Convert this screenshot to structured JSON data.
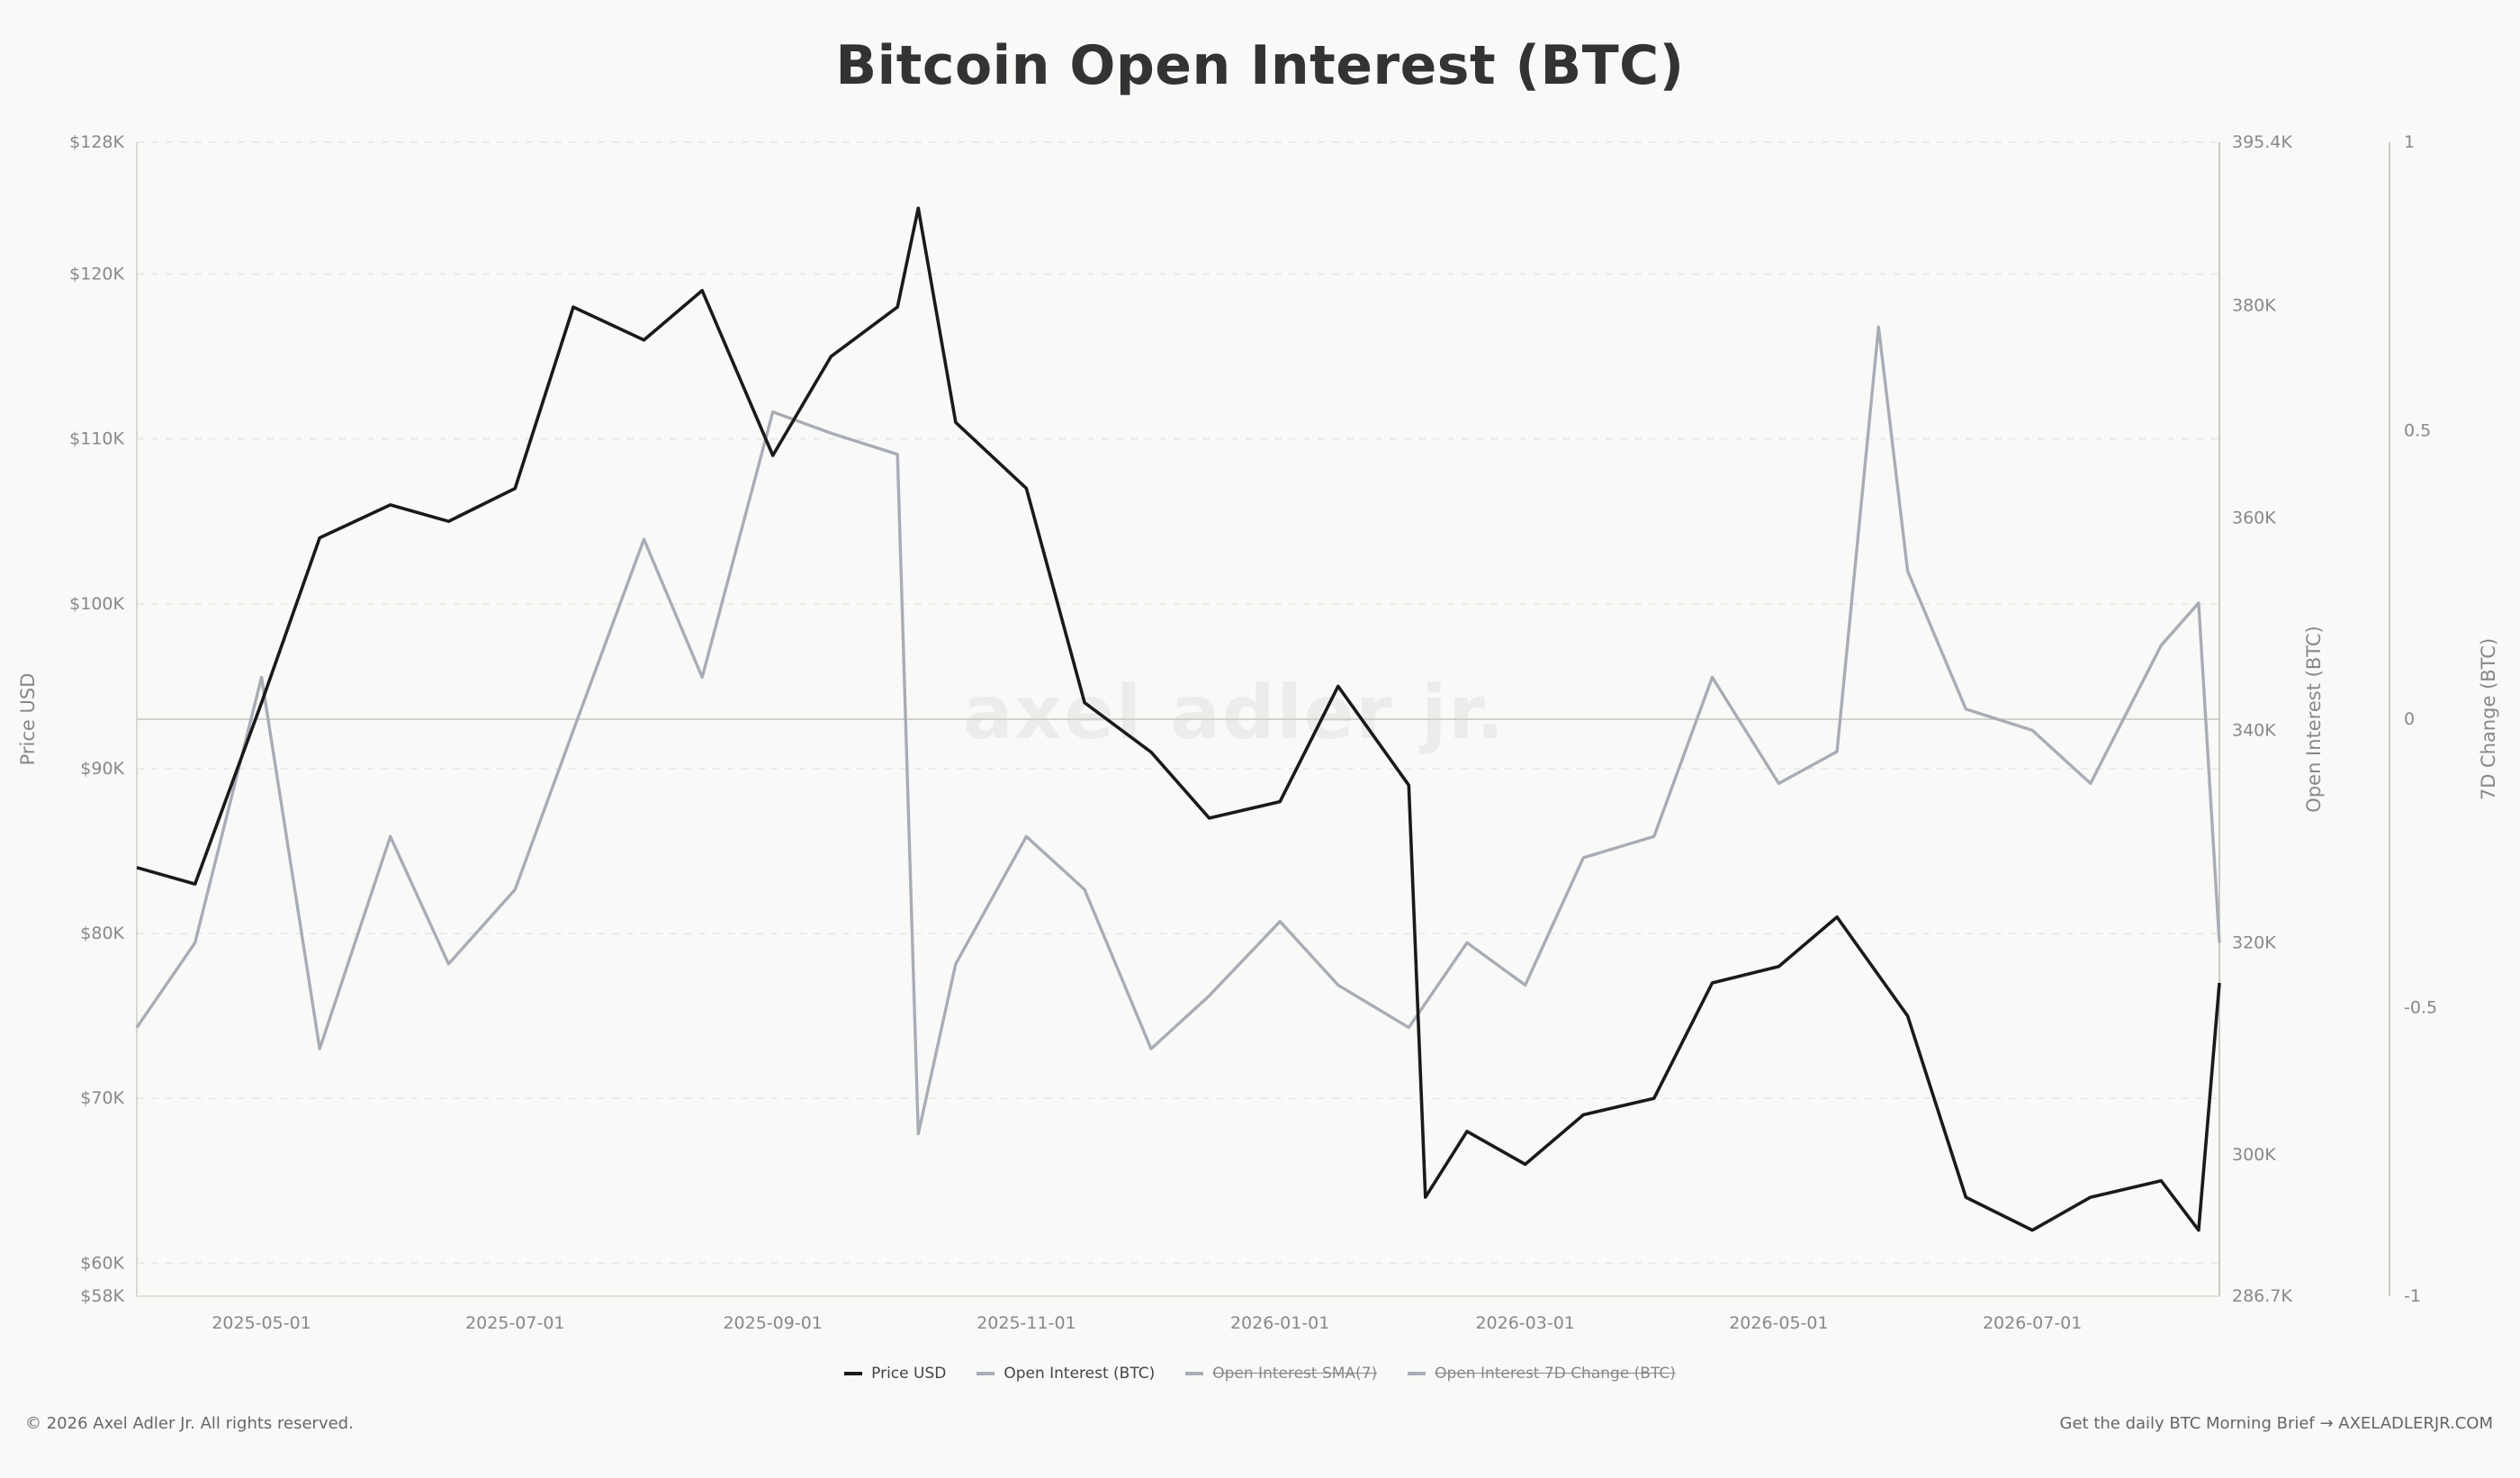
{
  "title": "Bitcoin Open Interest (BTC)",
  "watermark": "axel adler jr.",
  "footer": {
    "copyright": "© 2026 Axel Adler Jr. All rights reserved.",
    "cta": "Get the daily BTC Morning Brief → AXELADLERJR.COM"
  },
  "legend": [
    {
      "name": "Price USD",
      "color": "#1a1a1a",
      "hidden": false
    },
    {
      "name": "Open Interest (BTC)",
      "color": "#a8adb5",
      "hidden": false
    },
    {
      "name": "Open Interest SMA(7)",
      "color": "#a8adb5",
      "hidden": true
    },
    {
      "name": "Open Interest 7D Change (BTC)",
      "color": "#a8adb5",
      "hidden": true
    }
  ],
  "chart_data": {
    "type": "line",
    "title": "Bitcoin Open Interest (BTC)",
    "x_range": [
      "2025-04-01",
      "2026-08-15"
    ],
    "x_ticks": [
      "2025-05-01",
      "2025-07-01",
      "2025-09-01",
      "2025-11-01",
      "2026-01-01",
      "2026-03-01",
      "2026-05-01",
      "2026-07-01"
    ],
    "y_left": {
      "label": "Price USD",
      "ticks": [
        "$128K",
        "$120K",
        "$110K",
        "$100K",
        "$90K",
        "$80K",
        "$70K",
        "$60K",
        "$58K"
      ],
      "tick_values": [
        128000,
        120000,
        110000,
        100000,
        90000,
        80000,
        70000,
        60000,
        58000
      ],
      "range": [
        58000,
        128000
      ]
    },
    "y_right1": {
      "label": "Open Interest (BTC)",
      "ticks": [
        "395.4K",
        "380K",
        "360K",
        "340K",
        "320K",
        "300K",
        "286.7K"
      ],
      "tick_values": [
        395400,
        380000,
        360000,
        340000,
        320000,
        300000,
        286700
      ],
      "range": [
        286700,
        395400
      ]
    },
    "y_right2": {
      "label": "7D Change (BTC)",
      "ticks": [
        "1",
        "0.5",
        "0",
        "-0.5",
        "-1"
      ],
      "tick_values": [
        1,
        0.5,
        0,
        -0.5,
        -1
      ],
      "range": [
        -1,
        1
      ]
    },
    "grid": true,
    "legend_position": "bottom-center",
    "series": [
      {
        "name": "Price USD",
        "axis": "left",
        "color": "#1a1a1a",
        "x": [
          "2025-04-01",
          "2025-04-15",
          "2025-05-01",
          "2025-05-15",
          "2025-06-01",
          "2025-06-15",
          "2025-07-01",
          "2025-07-15",
          "2025-08-01",
          "2025-08-15",
          "2025-09-01",
          "2025-09-15",
          "2025-10-01",
          "2025-10-06",
          "2025-10-15",
          "2025-11-01",
          "2025-11-15",
          "2025-12-01",
          "2025-12-15",
          "2026-01-01",
          "2026-01-15",
          "2026-02-01",
          "2026-02-05",
          "2026-02-15",
          "2026-03-01",
          "2026-03-15",
          "2026-04-01",
          "2026-04-15",
          "2026-05-01",
          "2026-05-15",
          "2026-06-01",
          "2026-06-15",
          "2026-07-01",
          "2026-07-15",
          "2026-08-01",
          "2026-08-10",
          "2026-08-15"
        ],
        "values": [
          84000,
          83000,
          94000,
          104000,
          106000,
          105000,
          107000,
          118000,
          116000,
          119000,
          109000,
          115000,
          118000,
          124000,
          111000,
          107000,
          94000,
          91000,
          87000,
          88000,
          95000,
          89000,
          64000,
          68000,
          66000,
          69000,
          70000,
          77000,
          78000,
          81000,
          75000,
          64000,
          62000,
          64000,
          65000,
          62000,
          77000
        ]
      },
      {
        "name": "Open Interest (BTC)",
        "axis": "right1",
        "color": "#a8adb5",
        "x": [
          "2025-04-01",
          "2025-04-15",
          "2025-05-01",
          "2025-05-15",
          "2025-06-01",
          "2025-06-15",
          "2025-07-01",
          "2025-07-15",
          "2025-08-01",
          "2025-08-15",
          "2025-09-01",
          "2025-09-15",
          "2025-10-01",
          "2025-10-06",
          "2025-10-15",
          "2025-11-01",
          "2025-11-15",
          "2025-12-01",
          "2025-12-15",
          "2026-01-01",
          "2026-01-15",
          "2026-02-01",
          "2026-02-15",
          "2026-03-01",
          "2026-03-15",
          "2026-04-01",
          "2026-04-15",
          "2026-05-01",
          "2026-05-15",
          "2026-05-25",
          "2026-06-01",
          "2026-06-15",
          "2026-07-01",
          "2026-07-15",
          "2026-08-01",
          "2026-08-10",
          "2026-08-15"
        ],
        "values": [
          312000,
          320000,
          345000,
          310000,
          330000,
          318000,
          325000,
          340000,
          358000,
          345000,
          370000,
          368000,
          366000,
          302000,
          318000,
          330000,
          325000,
          310000,
          315000,
          322000,
          316000,
          312000,
          320000,
          316000,
          328000,
          330000,
          345000,
          335000,
          338000,
          378000,
          355000,
          342000,
          340000,
          335000,
          348000,
          352000,
          320000
        ]
      }
    ]
  }
}
